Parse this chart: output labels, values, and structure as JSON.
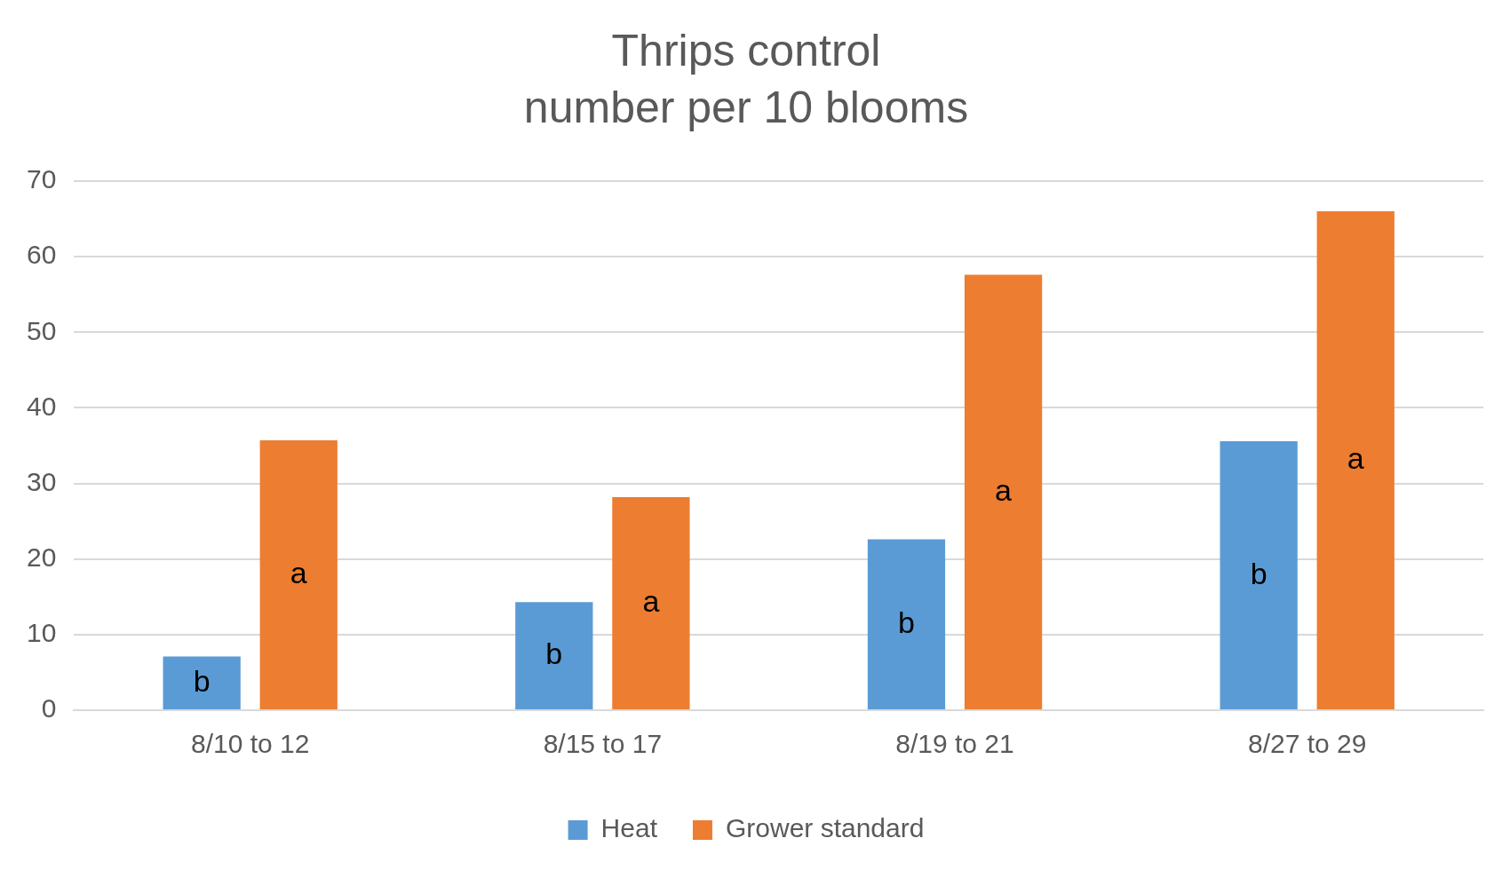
{
  "chart_data": {
    "type": "bar",
    "title": "Thrips control",
    "subtitle": "number per 10 blooms",
    "categories": [
      "8/10 to 12",
      "8/15 to 17",
      "8/19 to 21",
      "8/27 to 29"
    ],
    "series": [
      {
        "name": "Heat",
        "color": "#5b9bd5",
        "values": [
          7.1,
          14.3,
          22.6,
          35.6
        ]
      },
      {
        "name": "Grower standard",
        "color": "#ed7d31",
        "values": [
          35.7,
          28.2,
          57.6,
          66.0
        ]
      }
    ],
    "annotations": [
      "b",
      "b",
      "b",
      "b",
      "a",
      "a",
      "a",
      "a"
    ],
    "ylim": [
      0,
      70
    ],
    "yticks": [
      0,
      10,
      20,
      30,
      40,
      50,
      60,
      70
    ],
    "grid": "y",
    "legend": "bottom"
  }
}
